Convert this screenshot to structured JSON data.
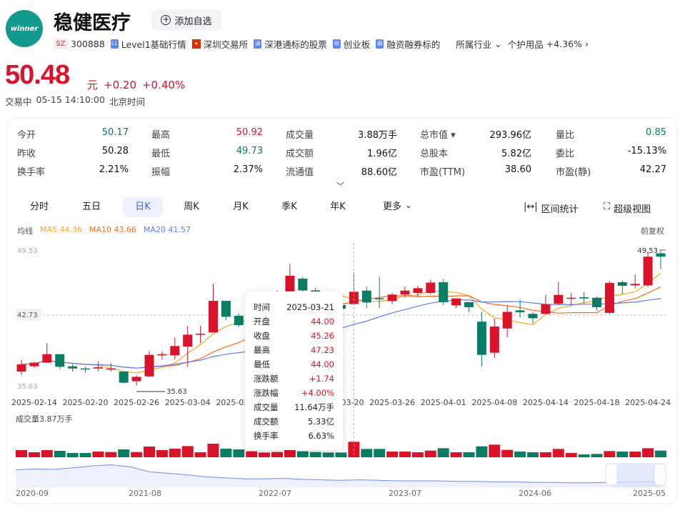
{
  "header": {
    "logo_text": "winner",
    "title": "稳健医疗",
    "add_watchlist": "添加自选"
  },
  "tags": {
    "market": "SZ",
    "code": "300888",
    "level1": "Level1基础行情",
    "level1_icon": "L1",
    "exchange": "深圳交易所",
    "connect": "深港通标的股票",
    "connect_icon": "通",
    "board": "创业板",
    "board_icon": "创",
    "margin": "融资融券标的",
    "margin_icon": "融",
    "industry": "所属行业",
    "sector": "个护用品",
    "sector_change": "+4.36%"
  },
  "quote": {
    "price": "50.48",
    "unit": "元",
    "change": "+0.20",
    "change_pct": "+0.40%",
    "status": "交易中",
    "time": "05-15 14:10:00",
    "tz": "北京时间"
  },
  "stats": [
    [
      {
        "label": "今开",
        "value": "50.17",
        "color": "g"
      },
      {
        "label": "最高",
        "value": "50.92",
        "color": "r"
      },
      {
        "label": "成交量",
        "value": "3.88万手"
      },
      {
        "label": "总市值 ▾",
        "value": "293.96亿"
      },
      {
        "label": "量比",
        "value": "0.85",
        "color": "g"
      }
    ],
    [
      {
        "label": "昨收",
        "value": "50.28"
      },
      {
        "label": "最低",
        "value": "49.73",
        "color": "g"
      },
      {
        "label": "成交额",
        "value": "1.96亿"
      },
      {
        "label": "总股本",
        "value": "5.82亿"
      },
      {
        "label": "委比",
        "value": "-15.13%"
      }
    ],
    [
      {
        "label": "换手率",
        "value": "2.21%"
      },
      {
        "label": "振幅",
        "value": "2.37%"
      },
      {
        "label": "流通值",
        "value": "88.60亿"
      },
      {
        "label": "市盈(TTM)",
        "value": "38.60"
      },
      {
        "label": "市盈(静)",
        "value": "42.27"
      }
    ]
  ],
  "tabs": [
    "分时",
    "五日",
    "日K",
    "周K",
    "月K",
    "季K",
    "年K",
    "更多"
  ],
  "selected_tab": "日K",
  "tools": {
    "range_stats": "区间统计",
    "super_view": "超级视图"
  },
  "ma_legend": {
    "title": "均线",
    "ma5": "MA5 44.36",
    "ma10": "MA10 43.66",
    "ma20": "MA20 41.57",
    "adjust": "前复权"
  },
  "colors": {
    "up": "#d9132a",
    "down": "#0a7d65",
    "ma5": "#f5a623",
    "ma10": "#ff6a1a",
    "ma20": "#5b7cfa"
  },
  "tooltip": {
    "rows": [
      [
        "时间",
        "2025-03-21"
      ],
      [
        "开盘",
        "44.00"
      ],
      [
        "收盘",
        "45.26"
      ],
      [
        "最高",
        "47.23"
      ],
      [
        "最低",
        "44.00"
      ],
      [
        "涨跌额",
        "+1.74"
      ],
      [
        "涨跌幅",
        "+4.00%"
      ],
      [
        "成交量",
        "11.64万手"
      ],
      [
        "成交额",
        "5.33亿"
      ],
      [
        "换手率",
        "6.63%"
      ]
    ]
  },
  "chart_data": {
    "type": "candlestick",
    "price_labels": {
      "top": "49.53",
      "mid": "42.73",
      "bottom": "35.63",
      "max_marker": "49.53",
      "min_marker": "35.63"
    },
    "ylim": [
      35.63,
      49.53
    ],
    "volume_label": "成交量3.87万手",
    "xtick_index": [
      1,
      5,
      9,
      13,
      17,
      21,
      25,
      29,
      33,
      37,
      41,
      45,
      49
    ],
    "crosshair_index": 26,
    "candles": [
      [
        "2025-02-13",
        37.09,
        37.82,
        38.31,
        36.73,
        5.36
      ],
      [
        "2025-02-14",
        37.63,
        38.0,
        38.1,
        37.5,
        3.75
      ],
      [
        "2025-02-17",
        38.0,
        38.87,
        40.0,
        38.0,
        5.36
      ],
      [
        "2025-02-18",
        38.87,
        37.58,
        38.87,
        37.34,
        4.82
      ],
      [
        "2025-02-19",
        37.63,
        37.4,
        37.82,
        37.09,
        3.22
      ],
      [
        "2025-02-20",
        37.41,
        37.3,
        37.58,
        36.97,
        3.22
      ],
      [
        "2025-02-21",
        37.4,
        37.53,
        38.14,
        37.09,
        4.29
      ],
      [
        "2025-02-24",
        37.3,
        37.41,
        37.97,
        37.09,
        3.93
      ],
      [
        "2025-02-25",
        37.09,
        35.95,
        37.09,
        35.87,
        5.9
      ],
      [
        "2025-02-26",
        36.1,
        36.55,
        36.7,
        35.63,
        3.93
      ],
      [
        "2025-02-27",
        36.6,
        38.8,
        39.17,
        36.5,
        8.04
      ],
      [
        "2025-02-28",
        38.75,
        38.87,
        39.17,
        38.31,
        5.36
      ],
      [
        "2025-03-03",
        38.75,
        39.7,
        40.55,
        38.31,
        6.43
      ],
      [
        "2025-03-04",
        39.65,
        40.87,
        41.78,
        37.58,
        8.4
      ],
      [
        "2025-03-05",
        40.87,
        40.97,
        41.78,
        40.0,
        3.75
      ],
      [
        "2025-03-06",
        41.1,
        44.33,
        46.1,
        41.1,
        10.19
      ],
      [
        "2025-03-07",
        44.33,
        42.7,
        44.33,
        42.33,
        6.43
      ],
      [
        "2025-03-10",
        42.8,
        41.85,
        43.04,
        41.68,
        5.9
      ],
      [
        "2025-03-11",
        41.9,
        42.3,
        42.6,
        41.7,
        4.47
      ],
      [
        "2025-03-12",
        42.3,
        43.5,
        43.8,
        42.1,
        3.57
      ],
      [
        "2025-03-13",
        43.5,
        45.1,
        45.4,
        43.3,
        3.93
      ],
      [
        "2025-03-14",
        45.3,
        46.9,
        48.1,
        45.1,
        8.94
      ],
      [
        "2025-03-17",
        46.6,
        45.4,
        46.8,
        45.2,
        4.47
      ],
      [
        "2025-03-18",
        45.4,
        44.6,
        45.65,
        44.4,
        3.93
      ],
      [
        "2025-03-19",
        44.6,
        43.9,
        44.8,
        43.7,
        3.57
      ],
      [
        "2025-03-20",
        43.9,
        43.52,
        44.1,
        43.3,
        3.57
      ],
      [
        "2025-03-21",
        44.0,
        45.26,
        47.23,
        44.0,
        11.64
      ],
      [
        "2025-03-24",
        45.38,
        44.16,
        45.8,
        43.6,
        6.25
      ],
      [
        "2025-03-25",
        44.6,
        44.5,
        46.8,
        43.6,
        6.25
      ],
      [
        "2025-03-26",
        44.3,
        44.97,
        45.14,
        43.99,
        4.29
      ],
      [
        "2025-03-27",
        44.97,
        45.38,
        45.8,
        44.65,
        4.29
      ],
      [
        "2025-03-28",
        45.14,
        45.63,
        45.87,
        44.77,
        3.75
      ],
      [
        "2025-03-31",
        45.14,
        46.2,
        46.5,
        45.0,
        5.0
      ],
      [
        "2025-04-01",
        46.24,
        44.2,
        46.55,
        43.9,
        6.79
      ],
      [
        "2025-04-02",
        43.87,
        44.58,
        44.58,
        43.6,
        3.75
      ],
      [
        "2025-04-03",
        44.2,
        43.68,
        44.2,
        43.17,
        3.75
      ],
      [
        "2025-04-07",
        42.2,
        38.8,
        43.2,
        37.6,
        8.22
      ],
      [
        "2025-04-08",
        39.02,
        41.7,
        42.5,
        38.5,
        9.47
      ],
      [
        "2025-04-09",
        41.5,
        43.2,
        43.83,
        40.6,
        5.54
      ],
      [
        "2025-04-10",
        43.36,
        43.16,
        44.46,
        42.6,
        4.29
      ],
      [
        "2025-04-11",
        43.0,
        42.55,
        43.16,
        42.0,
        3.75
      ],
      [
        "2025-04-14",
        43.0,
        43.97,
        44.95,
        42.95,
        3.75
      ],
      [
        "2025-04-15",
        44.04,
        44.94,
        46.24,
        43.87,
        6.25
      ],
      [
        "2025-04-16",
        44.58,
        44.65,
        45.14,
        43.85,
        3.22
      ],
      [
        "2025-04-17",
        44.7,
        44.58,
        45.26,
        44.04,
        2.14
      ],
      [
        "2025-04-18",
        44.65,
        43.68,
        44.77,
        43.33,
        2.5
      ],
      [
        "2025-04-21",
        43.1,
        46.16,
        46.36,
        42.97,
        4.65
      ],
      [
        "2025-04-22",
        46.24,
        45.87,
        46.41,
        45.0,
        4.29
      ],
      [
        "2025-04-23",
        45.92,
        46.07,
        47.06,
        45.6,
        4.29
      ],
      [
        "2025-04-24",
        45.92,
        48.85,
        49.4,
        45.75,
        6.79
      ],
      [
        "2025-04-25",
        49.2,
        48.85,
        49.53,
        47.58,
        5.0
      ]
    ],
    "navigator": {
      "labels": [
        "2020-09",
        "2021-08",
        "2022-07",
        "2023-07",
        "2024-06",
        "2025-05"
      ],
      "history": [
        62,
        64,
        63,
        66,
        70,
        72,
        68,
        58,
        55,
        52,
        48,
        46,
        44,
        44,
        45,
        43,
        42,
        41,
        42,
        41,
        40,
        40,
        40,
        39,
        39,
        38,
        38,
        37,
        37,
        36,
        36,
        37,
        38,
        38,
        39
      ]
    }
  }
}
